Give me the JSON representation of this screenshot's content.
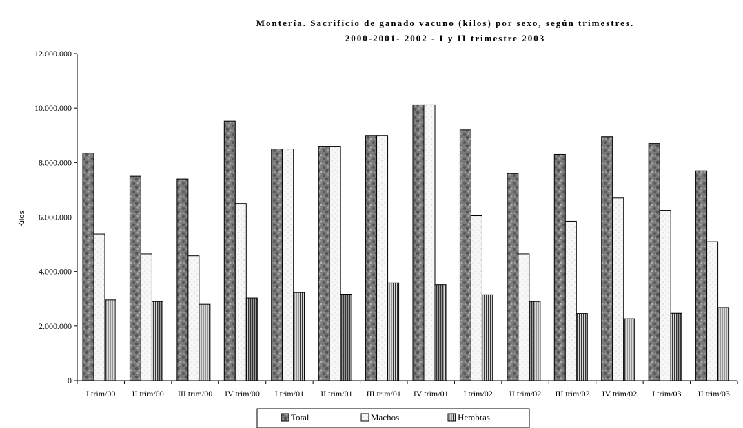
{
  "chart_data": {
    "type": "bar",
    "title": "Montería. Sacrificio de ganado vacuno (kilos) por sexo, según trimestres.",
    "subtitle": "2000-2001- 2002 - I y II trimestre 2003",
    "xlabel": "",
    "ylabel": "Kilos",
    "ylim": [
      0,
      12000000
    ],
    "yticks": [
      0,
      2000000,
      4000000,
      6000000,
      8000000,
      10000000,
      12000000
    ],
    "ytick_labels": [
      "0",
      "2.000.000",
      "4.000.000",
      "6.000.000",
      "8.000.000",
      "10.000.000",
      "12.000.000"
    ],
    "grid": false,
    "legend_position": "bottom",
    "categories": [
      "I trim/00",
      "II trim/00",
      "III trim/00",
      "IV trim/00",
      "I trim/01",
      "II trim/01",
      "III trim/01",
      "IV trim/01",
      "I trim/02",
      "II trim/02",
      "III trim/02",
      "IV trim/02",
      "I trim/03",
      "II trim/03"
    ],
    "series": [
      {
        "name": "Total",
        "pattern": "stone",
        "color": "#6e6e6e",
        "values": [
          8350000,
          7500000,
          7400000,
          9520000,
          8500000,
          8600000,
          9000000,
          10120000,
          9200000,
          7600000,
          8300000,
          8950000,
          8700000,
          7700000
        ]
      },
      {
        "name": "Machos",
        "pattern": "light",
        "color": "#f4f4f4",
        "values": [
          5380000,
          4650000,
          4580000,
          6500000,
          8500000,
          8600000,
          9000000,
          10120000,
          6050000,
          4650000,
          5850000,
          6700000,
          6250000,
          5100000
        ]
      },
      {
        "name": "Hembras",
        "pattern": "vertical-stripes",
        "color": "#7a7a7a",
        "values": [
          2960000,
          2900000,
          2800000,
          3030000,
          3230000,
          3170000,
          3580000,
          3520000,
          3150000,
          2900000,
          2460000,
          2270000,
          2470000,
          2680000
        ]
      }
    ]
  }
}
